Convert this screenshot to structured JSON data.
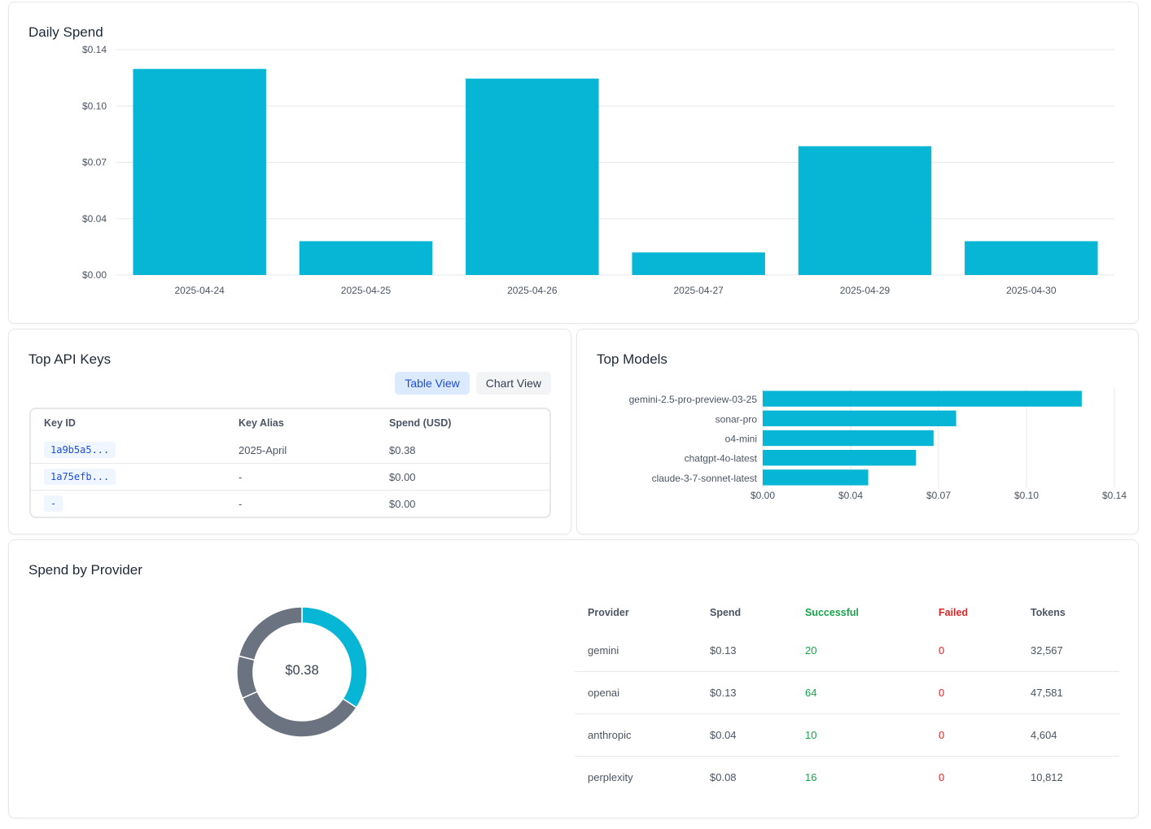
{
  "daily_spend": {
    "title": "Daily Spend",
    "chart_data": {
      "type": "bar",
      "categories": [
        "2025-04-24",
        "2025-04-25",
        "2025-04-26",
        "2025-04-27",
        "2025-04-29",
        "2025-04-30"
      ],
      "values": [
        0.128,
        0.021,
        0.122,
        0.014,
        0.08,
        0.021
      ],
      "yticks": [
        0,
        0.035,
        0.07,
        0.105,
        0.14
      ],
      "ytick_labels": [
        "$0.00",
        "$0.04",
        "$0.07",
        "$0.10",
        "$0.14"
      ],
      "ylim": [
        0,
        0.14
      ],
      "grid": true,
      "color": "#06b6d4"
    }
  },
  "top_api_keys": {
    "title": "Top API Keys",
    "table_view_label": "Table View",
    "chart_view_label": "Chart View",
    "columns": [
      "Key ID",
      "Key Alias",
      "Spend (USD)"
    ],
    "rows": [
      {
        "key_id": "1a9b5a5...",
        "alias": "2025-April",
        "spend": "$0.38"
      },
      {
        "key_id": "1a75efb...",
        "alias": "-",
        "spend": "$0.00"
      },
      {
        "key_id": "-",
        "alias": "-",
        "spend": "$0.00"
      }
    ]
  },
  "top_models": {
    "title": "Top Models",
    "chart_data": {
      "type": "bar",
      "orientation": "horizontal",
      "categories": [
        "gemini-2.5-pro-preview-03-25",
        "sonar-pro",
        "o4-mini",
        "chatgpt-4o-latest",
        "claude-3-7-sonnet-latest"
      ],
      "values": [
        0.127,
        0.077,
        0.068,
        0.061,
        0.042
      ],
      "xticks": [
        0,
        0.035,
        0.07,
        0.105,
        0.14
      ],
      "xtick_labels": [
        "$0.00",
        "$0.04",
        "$0.07",
        "$0.10",
        "$0.14"
      ],
      "xlim": [
        0,
        0.14
      ],
      "grid": true,
      "color": "#06b6d4"
    }
  },
  "spend_by_provider": {
    "title": "Spend by Provider",
    "total_label": "$0.38",
    "chart_data": {
      "type": "pie",
      "donut": true,
      "categories": [
        "gemini",
        "openai",
        "anthropic",
        "perplexity"
      ],
      "values": [
        0.13,
        0.13,
        0.04,
        0.08
      ],
      "colors": [
        "#06b6d4",
        "#6b7280",
        "#6b7280",
        "#6b7280"
      ]
    },
    "columns": [
      "Provider",
      "Spend",
      "Successful",
      "Failed",
      "Tokens"
    ],
    "rows": [
      {
        "provider": "gemini",
        "spend": "$0.13",
        "successful": "20",
        "failed": "0",
        "tokens": "32,567"
      },
      {
        "provider": "openai",
        "spend": "$0.13",
        "successful": "64",
        "failed": "0",
        "tokens": "47,581"
      },
      {
        "provider": "anthropic",
        "spend": "$0.04",
        "successful": "10",
        "failed": "0",
        "tokens": "4,604"
      },
      {
        "provider": "perplexity",
        "spend": "$0.08",
        "successful": "16",
        "failed": "0",
        "tokens": "10,812"
      }
    ]
  }
}
